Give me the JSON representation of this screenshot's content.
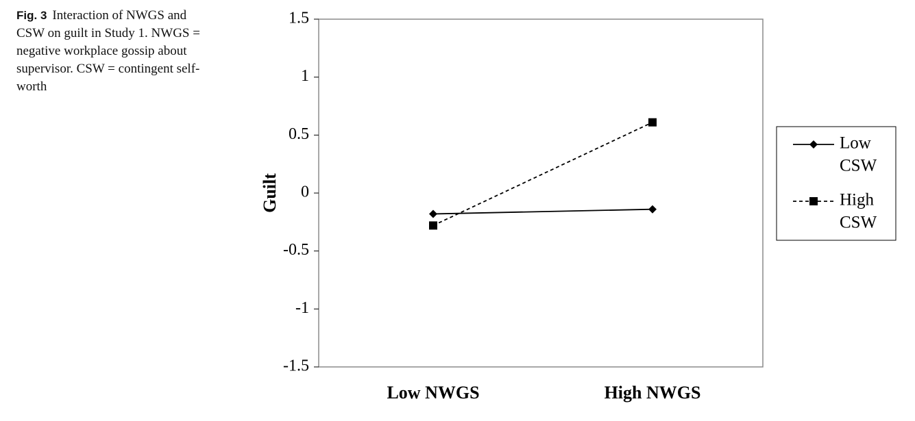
{
  "caption": {
    "label": "Fig. 3",
    "text": "Interaction of NWGS and CSW on guilt in Study 1. NWGS = negative workplace gossip about supervisor. CSW = contingent self-worth"
  },
  "chart_data": {
    "type": "line",
    "title": "",
    "xlabel": "",
    "ylabel": "Guilt",
    "categories": [
      "Low NWGS",
      "High NWGS"
    ],
    "ylim": [
      -1.5,
      1.5
    ],
    "yticks": [
      "1.5",
      "1",
      "0.5",
      "0",
      "-0.5",
      "-1",
      "-1.5"
    ],
    "ytick_values": [
      1.5,
      1,
      0.5,
      0,
      -0.5,
      -1,
      -1.5
    ],
    "grid": false,
    "legend_position": "right",
    "series": [
      {
        "name_line1": "Low",
        "name_line2": "CSW",
        "values": [
          -0.18,
          -0.14
        ],
        "marker": "diamond",
        "dash": "solid",
        "color": "#000000"
      },
      {
        "name_line1": "High",
        "name_line2": "CSW",
        "values": [
          -0.28,
          0.61
        ],
        "marker": "square",
        "dash": "dashed",
        "color": "#000000"
      }
    ]
  }
}
